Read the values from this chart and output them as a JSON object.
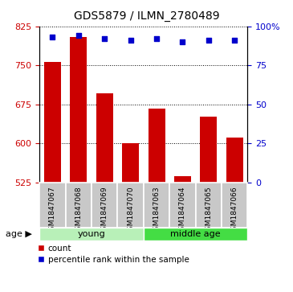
{
  "title": "GDS5879 / ILMN_2780489",
  "samples": [
    "GSM1847067",
    "GSM1847068",
    "GSM1847069",
    "GSM1847070",
    "GSM1847063",
    "GSM1847064",
    "GSM1847065",
    "GSM1847066"
  ],
  "bar_values": [
    757,
    805,
    697,
    601,
    667,
    537,
    652,
    612
  ],
  "percentile_values": [
    93,
    94,
    92,
    91,
    92,
    90,
    91,
    91
  ],
  "bar_color": "#cc0000",
  "dot_color": "#0000cc",
  "ylim_left": [
    525,
    825
  ],
  "ylim_right": [
    0,
    100
  ],
  "yticks_left": [
    525,
    600,
    675,
    750,
    825
  ],
  "yticks_right": [
    0,
    25,
    50,
    75,
    100
  ],
  "ytick_labels_right": [
    "0",
    "25",
    "50",
    "75",
    "100%"
  ],
  "groups": [
    {
      "label": "young",
      "indices": [
        0,
        1,
        2,
        3
      ],
      "color": "#b8f0b8"
    },
    {
      "label": "middle age",
      "indices": [
        4,
        5,
        6,
        7
      ],
      "color": "#44dd44"
    }
  ],
  "age_label": "age",
  "legend_items": [
    {
      "color": "#cc0000",
      "label": "count"
    },
    {
      "color": "#0000cc",
      "label": "percentile rank within the sample"
    }
  ],
  "grid_linestyle": "dotted",
  "bar_width": 0.65,
  "sample_box_color": "#c8c8c8",
  "background_color": "#ffffff",
  "title_fontsize": 10,
  "tick_fontsize": 8,
  "sample_fontsize": 6.5,
  "group_fontsize": 8,
  "legend_fontsize": 7.5
}
